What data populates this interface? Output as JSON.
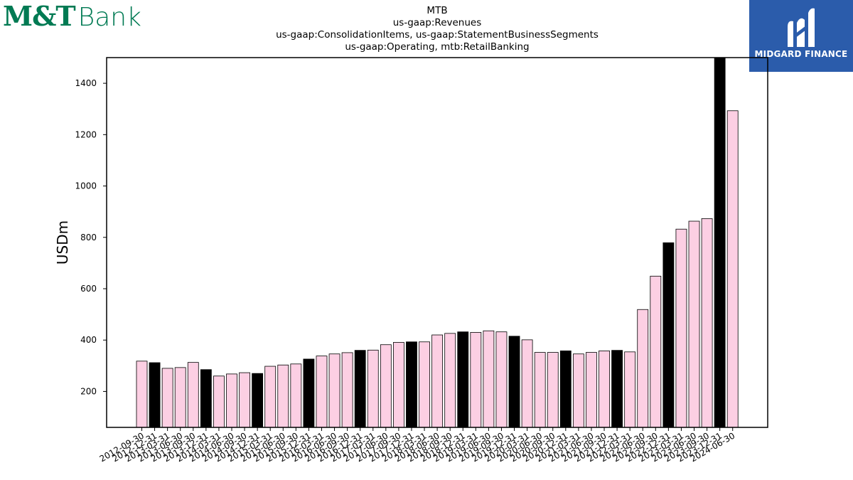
{
  "header": {
    "left_logo_mt": "M&T",
    "left_logo_bank": "Bank",
    "right_logo_name": "MIDGARD FINANCE"
  },
  "colors": {
    "bar_light": "#fccfe3",
    "bar_dark": "#000000",
    "brand_green": "#007a53",
    "brand_blue": "#2b5cab"
  },
  "chart_data": {
    "type": "bar",
    "title_lines": [
      "MTB",
      "us-gaap:Revenues",
      "us-gaap:ConsolidationItems, us-gaap:StatementBusinessSegments",
      "us-gaap:Operating, mtb:RetailBanking"
    ],
    "xlabel": "",
    "ylabel": "USDm",
    "ylim": [
      60,
      1500
    ],
    "yticks": [
      200,
      400,
      600,
      800,
      1000,
      1200,
      1400
    ],
    "grid": false,
    "categories": [
      "2012-09-30",
      "2012-12-31",
      "2013-03-31",
      "2013-06-30",
      "2013-09-30",
      "2013-12-31",
      "2014-03-31",
      "2014-06-30",
      "2014-09-30",
      "2014-12-31",
      "2015-03-31",
      "2015-06-30",
      "2015-09-30",
      "2015-12-31",
      "2016-03-31",
      "2016-06-30",
      "2016-09-30",
      "2016-12-31",
      "2017-03-31",
      "2017-06-30",
      "2017-09-30",
      "2017-12-31",
      "2018-03-31",
      "2018-06-30",
      "2018-09-30",
      "2018-12-31",
      "2019-03-31",
      "2019-06-30",
      "2019-09-30",
      "2019-12-31",
      "2020-03-31",
      "2020-06-30",
      "2020-09-30",
      "2020-12-31",
      "2021-03-31",
      "2021-06-30",
      "2021-09-30",
      "2021-12-31",
      "2022-03-31",
      "2022-06-30",
      "2022-09-30",
      "2022-12-31",
      "2023-03-31",
      "2023-06-30",
      "2023-09-30",
      "2023-12-31",
      "2024-06-30"
    ],
    "values": [
      318,
      312,
      290,
      293,
      313,
      285,
      260,
      268,
      273,
      270,
      298,
      303,
      307,
      326,
      338,
      346,
      351,
      360,
      361,
      382,
      391,
      393,
      393,
      420,
      426,
      432,
      430,
      436,
      432,
      415,
      401,
      352,
      352,
      358,
      346,
      352,
      358,
      360,
      354,
      519,
      649,
      779,
      832,
      863,
      873,
      1500,
      1293
    ],
    "dark_indices": [
      1,
      5,
      9,
      13,
      17,
      21,
      25,
      29,
      33,
      37,
      41,
      45
    ]
  }
}
